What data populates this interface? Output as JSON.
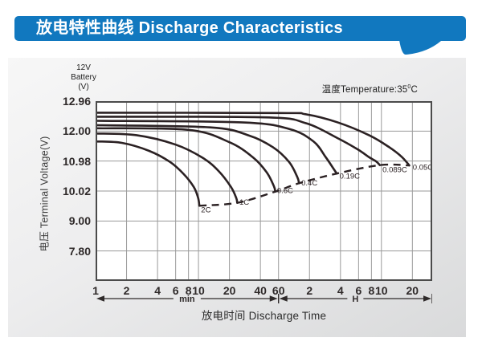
{
  "header": {
    "title": "放电特性曲线 Discharge Characteristics"
  },
  "panel": {
    "battery_label": {
      "line1": "12V",
      "line2": "Battery",
      "line3": "(V)"
    },
    "temperature": {
      "prefix": "温度Temperature:35",
      "sup": "0",
      "suffix": "C"
    },
    "y_axis_title": "电压 Terminal Voltage(V)",
    "x_axis_title": "放电时间 Discharge Time"
  },
  "chart_data": {
    "type": "line",
    "title": "Discharge Characteristics",
    "x_scale": "log",
    "x_domain_minutes": [
      1,
      1870
    ],
    "grid": true,
    "x_unit_sections": [
      {
        "label": "min",
        "from_minutes": 1,
        "to_minutes": 60
      },
      {
        "label": "H",
        "from_minutes": 60,
        "to_minutes": 1870
      }
    ],
    "x_ticks": [
      {
        "label": "1",
        "minutes": 1
      },
      {
        "label": "2",
        "minutes": 2
      },
      {
        "label": "4",
        "minutes": 4
      },
      {
        "label": "6",
        "minutes": 6
      },
      {
        "label": "8",
        "minutes": 8
      },
      {
        "label": "10",
        "minutes": 10
      },
      {
        "label": "20",
        "minutes": 20
      },
      {
        "label": "40",
        "minutes": 40
      },
      {
        "label": "60",
        "minutes": 60
      },
      {
        "label": "2",
        "minutes": 120
      },
      {
        "label": "4",
        "minutes": 240
      },
      {
        "label": "6",
        "minutes": 360
      },
      {
        "label": "8",
        "minutes": 480
      },
      {
        "label": "10",
        "minutes": 600
      },
      {
        "label": "20",
        "minutes": 1200
      }
    ],
    "y_ticks": [
      {
        "label": "12.96",
        "value": 12.96
      },
      {
        "label": "12.00",
        "value": 12.0
      },
      {
        "label": "10.98",
        "value": 10.98
      },
      {
        "label": "10.02",
        "value": 10.02
      },
      {
        "label": "9.00",
        "value": 9.0
      },
      {
        "label": "7.80",
        "value": 7.8
      }
    ],
    "series": [
      {
        "name": "2C",
        "points": [
          [
            1,
            11.65
          ],
          [
            1.8,
            11.6
          ],
          [
            3.3,
            11.33
          ],
          [
            5.3,
            10.95
          ],
          [
            7.2,
            10.56
          ],
          [
            9,
            10.15
          ],
          [
            9.9,
            9.8
          ],
          [
            10.2,
            9.52
          ]
        ],
        "label_at": [
          10.6,
          9.3
        ]
      },
      {
        "name": "1C",
        "points": [
          [
            1,
            11.92
          ],
          [
            2.5,
            11.86
          ],
          [
            6,
            11.54
          ],
          [
            11,
            11.09
          ],
          [
            15.7,
            10.66
          ],
          [
            20.7,
            10.15
          ],
          [
            23.3,
            9.78
          ],
          [
            23.8,
            9.62
          ]
        ],
        "label_at": [
          25,
          9.55
        ]
      },
      {
        "name": "0.6C",
        "points": [
          [
            1,
            12.09
          ],
          [
            8,
            12.04
          ],
          [
            20,
            11.62
          ],
          [
            34,
            11.1
          ],
          [
            46,
            10.62
          ],
          [
            54,
            10.18
          ],
          [
            55.8,
            10.0
          ]
        ],
        "label_at": [
          58,
          9.95
        ]
      },
      {
        "name": "0.4C",
        "points": [
          [
            1,
            12.19
          ],
          [
            13,
            12.12
          ],
          [
            31,
            11.85
          ],
          [
            53,
            11.45
          ],
          [
            76,
            10.95
          ],
          [
            91,
            10.48
          ],
          [
            95,
            10.27
          ]
        ],
        "label_at": [
          100,
          10.2
        ]
      },
      {
        "name": "0.19C",
        "points": [
          [
            1,
            12.33
          ],
          [
            26,
            12.28
          ],
          [
            76,
            12.07
          ],
          [
            131,
            11.65
          ],
          [
            172,
            11.12
          ],
          [
            205,
            10.74
          ],
          [
            221,
            10.58
          ]
        ],
        "label_at": [
          235,
          10.42
        ]
      },
      {
        "name": "0.089C",
        "points": [
          [
            1,
            12.46
          ],
          [
            44,
            12.44
          ],
          [
            109,
            12.26
          ],
          [
            225,
            11.76
          ],
          [
            352,
            11.38
          ],
          [
            461,
            11.1
          ],
          [
            533,
            10.97
          ],
          [
            580,
            10.85
          ]
        ],
        "label_at": [
          615,
          10.62
        ]
      },
      {
        "name": "0.05C",
        "points": [
          [
            1,
            12.59
          ],
          [
            60,
            12.58
          ],
          [
            110,
            12.54
          ],
          [
            225,
            12.28
          ],
          [
            461,
            11.85
          ],
          [
            723,
            11.44
          ],
          [
            948,
            11.12
          ],
          [
            1120,
            10.84
          ]
        ],
        "label_at": [
          1210,
          10.7
        ]
      }
    ],
    "cutoff_line": {
      "style": "dashed",
      "points": [
        [
          10.2,
          9.52
        ],
        [
          23.8,
          9.62
        ],
        [
          55.8,
          10.0
        ],
        [
          95,
          10.27
        ],
        [
          221,
          10.58
        ],
        [
          580,
          10.85
        ],
        [
          1120,
          10.84
        ]
      ]
    },
    "colors": {
      "curve": "#2b2123",
      "grid": "#9a9a9a",
      "plot_border": "#4b4b4b",
      "banner_blue": "#1178bf",
      "tick_text": "#2f2a2a"
    }
  }
}
